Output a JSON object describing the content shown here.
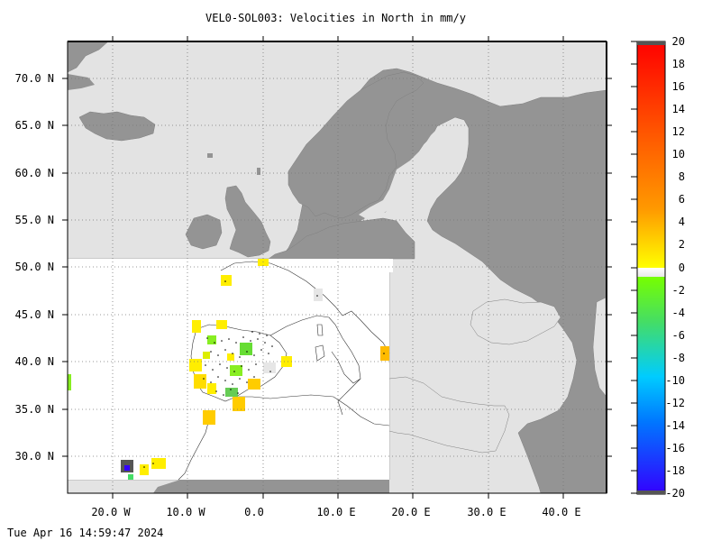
{
  "title": "VEL0-SOL003: Velocities in North in mm/y",
  "timestamp": "Tue Apr 16 14:59:47 2024",
  "lat_labels": [
    "70.0 N",
    "65.0 N",
    "60.0 N",
    "55.0 N",
    "50.0 N",
    "45.0 N",
    "40.0 N",
    "35.0 N",
    "30.0 N"
  ],
  "lon_labels": [
    "20.0 W",
    "10.0 W",
    "0.0",
    "10.0 E",
    "20.0 E",
    "30.0 E",
    "40.0 E"
  ],
  "colorbar": {
    "labels": [
      "20",
      "18",
      "16",
      "14",
      "12",
      "10",
      "8",
      "6",
      "4",
      "2",
      "0",
      "-2",
      "-4",
      "-6",
      "-8",
      "-10",
      "-12",
      "-14",
      "-16",
      "-18",
      "-20"
    ],
    "range": [
      -20,
      20
    ],
    "units": "mm/y"
  },
  "map": {
    "lon_range": [
      -26,
      46
    ],
    "lat_range": [
      26,
      74
    ],
    "land_color": "#949494",
    "sea_color": "#e3e3e3",
    "data_domain_color": "#ffffff"
  }
}
